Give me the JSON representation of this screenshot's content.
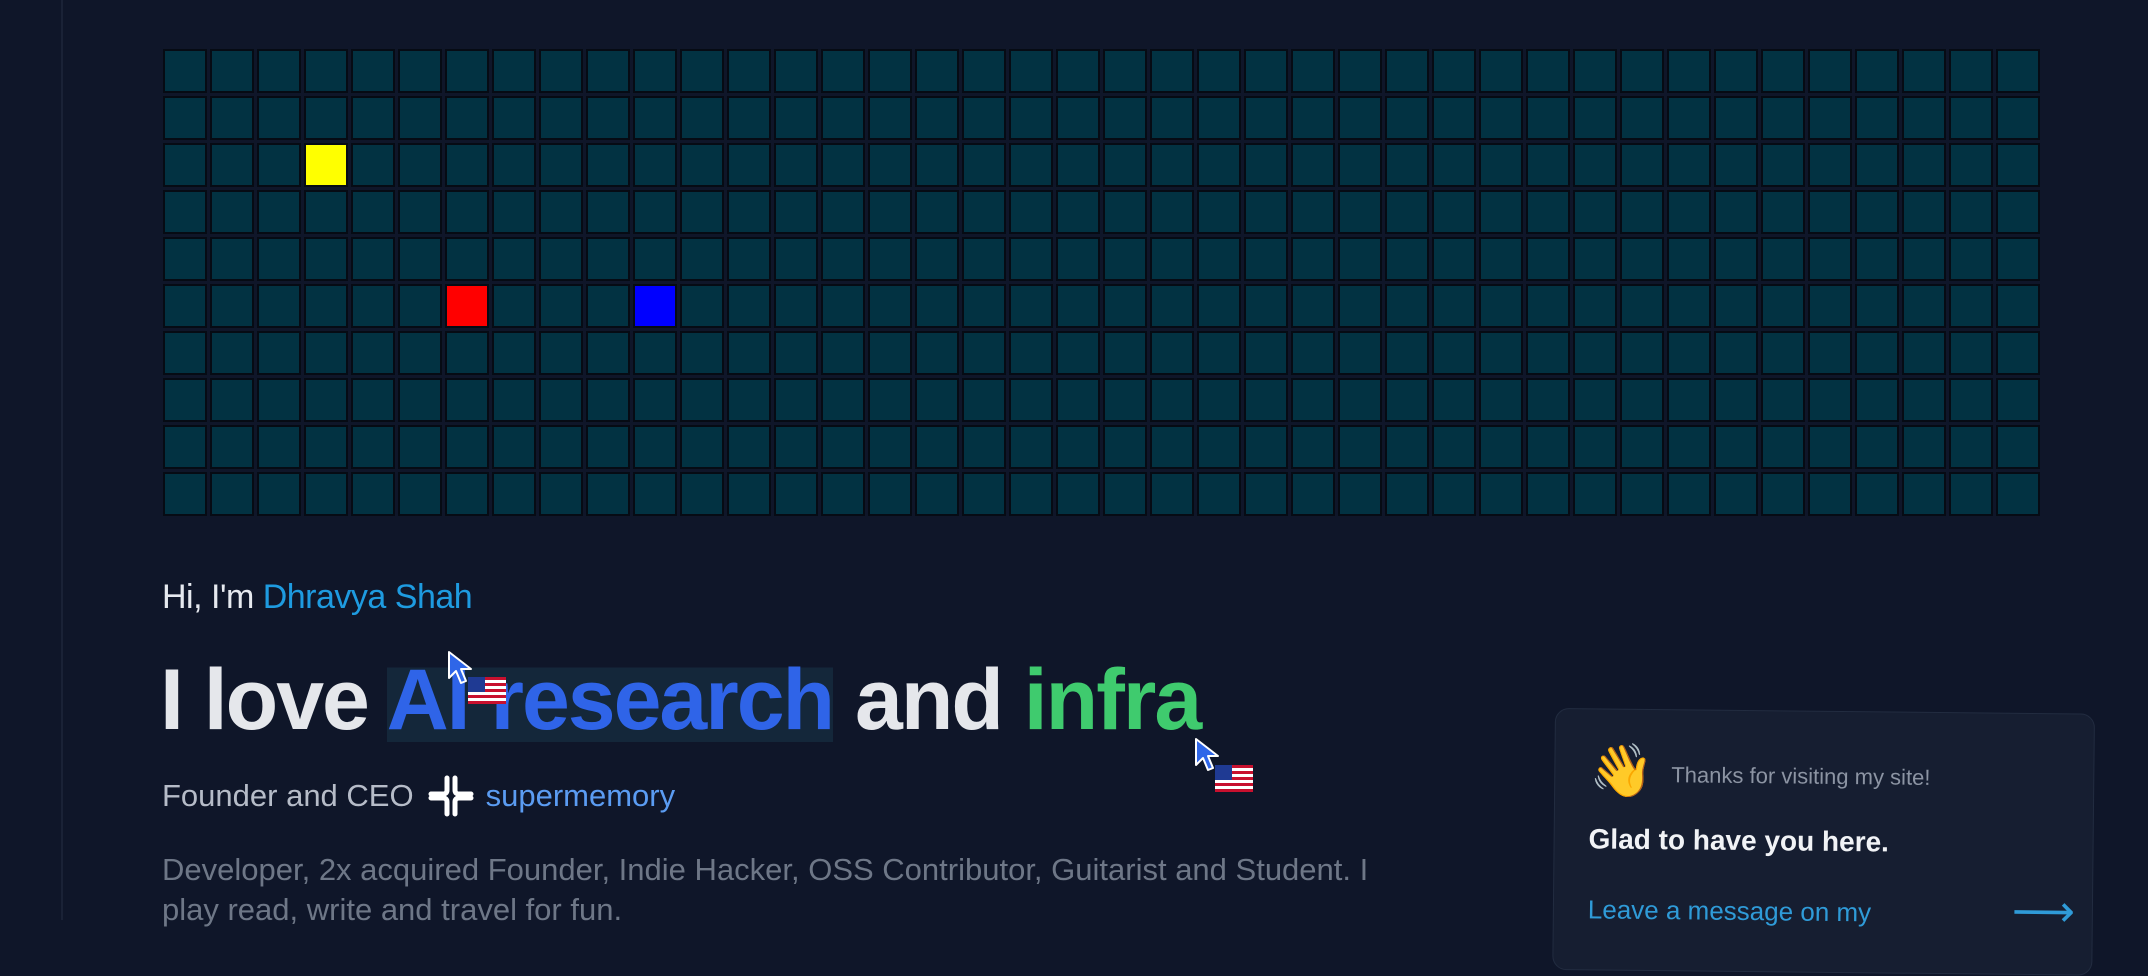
{
  "colors": {
    "background": "#0f1629",
    "cell": "#023242",
    "cell_border": "#060b14",
    "highlight_yellow": "#ffff00",
    "highlight_red": "#ff0000",
    "highlight_blue": "#0000ff",
    "name_accent": "#1e9be0",
    "ai_research": "#2f64e8",
    "infra": "#3fcb6e",
    "company": "#5b9cf2"
  },
  "grid": {
    "rows": 10,
    "cols": 40,
    "active_cells": [
      {
        "row": 2,
        "col": 3,
        "color": "#ffff00"
      },
      {
        "row": 5,
        "col": 6,
        "color": "#ff0000"
      },
      {
        "row": 5,
        "col": 10,
        "color": "#0000ff"
      }
    ]
  },
  "hero": {
    "greeting_prefix": "Hi, I'm ",
    "name": "Dhravya Shah",
    "headline_prefix": "I love ",
    "headline_highlight": "AI research",
    "headline_middle": " and ",
    "headline_accent": "infra",
    "role_text": "Founder and CEO",
    "company_icon": "supermemory-logo-icon",
    "company": "supermemory",
    "bio": "Developer, 2x acquired Founder, Indie Hacker, OSS Contributor, Guitarist and Student. I play read, write and travel for fun."
  },
  "cursors": [
    {
      "icon": "cursor-arrow-icon",
      "flag": "us-flag-icon"
    },
    {
      "icon": "cursor-arrow-icon",
      "flag": "us-flag-icon"
    }
  ],
  "visitor_card": {
    "icon": "waving-hand-icon",
    "wave_emoji": "👋",
    "thanks": "Thanks for visiting my site!",
    "heading": "Glad to have you here.",
    "link_text": "Leave a message on my",
    "arrow": "⟶"
  }
}
